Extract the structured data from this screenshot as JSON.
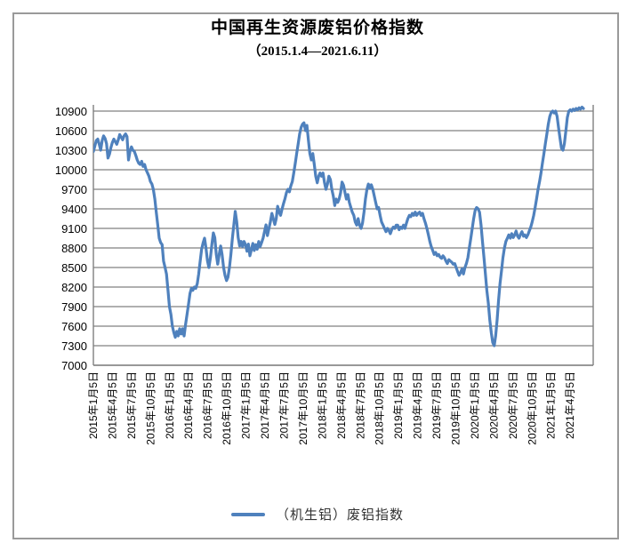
{
  "title": "中国再生资源废铝价格指数",
  "subtitle": "（2015.1.4—2021.6.11）",
  "legend": {
    "label": "（机生铝）废铝指数"
  },
  "colors": {
    "series_line": "#4f81bd",
    "gridline": "#808080",
    "plot_border": "#808080",
    "frame_border": "#9a9a9a",
    "text": "#000000"
  },
  "chart_data": {
    "type": "line",
    "title": "中国再生资源废铝价格指数",
    "subtitle": "（2015.1.4—2021.6.11）",
    "x_start": "2015-01-05",
    "x_end": "2021-06-11",
    "x_interval": "weekly",
    "ylim": [
      7000,
      10900
    ],
    "y_tick_step": 300,
    "y_tick_labels": [
      7000,
      7300,
      7600,
      7900,
      8200,
      8500,
      8800,
      9100,
      9400,
      9700,
      10000,
      10300,
      10600,
      10900
    ],
    "grid": "horizontal",
    "legend_position": "bottom",
    "x_tick_step_weeks": 13.04,
    "x_tick_labels": [
      "2015年1月5日",
      "2015年4月5日",
      "2015年7月5日",
      "2015年10月5日",
      "2016年1月5日",
      "2016年4月5日",
      "2016年7月5日",
      "2016年10月5日",
      "2017年1月5日",
      "2017年4月5日",
      "2017年7月5日",
      "2017年10月5日",
      "2018年1月5日",
      "2018年4月5日",
      "2018年7月5日",
      "2018年10月5日",
      "2019年1月5日",
      "2019年4月5日",
      "2019年7月5日",
      "2019年10月5日",
      "2020年1月5日",
      "2020年4月5日",
      "2020年7月5日",
      "2020年10月5日",
      "2021年1月5日",
      "2021年4月5日"
    ],
    "series": [
      {
        "name": "（机生铝）废铝指数",
        "color": "#4f81bd",
        "values": [
          10280,
          10360,
          10450,
          10470,
          10390,
          10300,
          10450,
          10520,
          10480,
          10400,
          10180,
          10240,
          10340,
          10420,
          10470,
          10430,
          10390,
          10460,
          10540,
          10500,
          10460,
          10520,
          10550,
          10510,
          10150,
          10280,
          10350,
          10300,
          10280,
          10220,
          10150,
          10100,
          10080,
          10130,
          10050,
          10080,
          10000,
          9950,
          9900,
          9820,
          9780,
          9700,
          9550,
          9350,
          9150,
          8950,
          8880,
          8850,
          8600,
          8500,
          8400,
          8150,
          7900,
          7780,
          7600,
          7500,
          7430,
          7520,
          7450,
          7560,
          7480,
          7560,
          7450,
          7620,
          7780,
          7930,
          8100,
          8180,
          8150,
          8200,
          8180,
          8250,
          8400,
          8600,
          8780,
          8880,
          8950,
          8800,
          8600,
          8500,
          8650,
          8850,
          9030,
          8960,
          8700,
          8550,
          8700,
          8830,
          8700,
          8500,
          8380,
          8300,
          8350,
          8500,
          8700,
          8950,
          9150,
          9360,
          9200,
          8960,
          8830,
          8900,
          8820,
          8900,
          8850,
          8750,
          8860,
          8680,
          8770,
          8870,
          8760,
          8850,
          8780,
          8900,
          8820,
          8880,
          8950,
          9050,
          9155,
          8990,
          9100,
          9200,
          9330,
          9250,
          9160,
          9250,
          9440,
          9350,
          9300,
          9400,
          9480,
          9560,
          9650,
          9700,
          9660,
          9750,
          9820,
          9950,
          10100,
          10250,
          10400,
          10550,
          10650,
          10700,
          10720,
          10600,
          10680,
          10450,
          10250,
          10150,
          10250,
          10080,
          9900,
          9800,
          9900,
          9950,
          9900,
          9950,
          9800,
          9700,
          9780,
          9900,
          9850,
          9700,
          9600,
          9450,
          9550,
          9500,
          9550,
          9650,
          9810,
          9760,
          9650,
          9550,
          9620,
          9500,
          9420,
          9350,
          9300,
          9200,
          9150,
          9250,
          9150,
          9100,
          9180,
          9350,
          9550,
          9700,
          9780,
          9720,
          9770,
          9700,
          9600,
          9500,
          9400,
          9420,
          9300,
          9200,
          9150,
          9100,
          9050,
          9100,
          9070,
          9020,
          9080,
          9120,
          9100,
          9150,
          9150,
          9080,
          9120,
          9100,
          9150,
          9100,
          9180,
          9250,
          9300,
          9280,
          9330,
          9300,
          9350,
          9300,
          9330,
          9350,
          9300,
          9330,
          9250,
          9180,
          9100,
          9000,
          8900,
          8820,
          8760,
          8700,
          8730,
          8680,
          8700,
          8660,
          8640,
          8680,
          8650,
          8600,
          8560,
          8620,
          8600,
          8580,
          8550,
          8560,
          8500,
          8440,
          8380,
          8420,
          8480,
          8400,
          8500,
          8560,
          8650,
          8800,
          8950,
          9100,
          9250,
          9380,
          9420,
          9400,
          9350,
          9150,
          8900,
          8650,
          8400,
          8150,
          7950,
          7700,
          7500,
          7350,
          7300,
          7450,
          7700,
          8000,
          8250,
          8450,
          8650,
          8800,
          8900,
          8950,
          9000,
          8950,
          9020,
          8960,
          9000,
          9060,
          8980,
          8950,
          9010,
          9050,
          8980,
          9000,
          8960,
          9000,
          9060,
          9120,
          9200,
          9300,
          9420,
          9560,
          9700,
          9820,
          9950,
          10100,
          10250,
          10400,
          10550,
          10700,
          10820,
          10880,
          10900,
          10870,
          10900,
          10820,
          10650,
          10480,
          10330,
          10300,
          10400,
          10600,
          10800,
          10900,
          10920,
          10900,
          10930,
          10910,
          10940,
          10920,
          10950,
          10930,
          10960,
          10940
        ]
      }
    ]
  }
}
